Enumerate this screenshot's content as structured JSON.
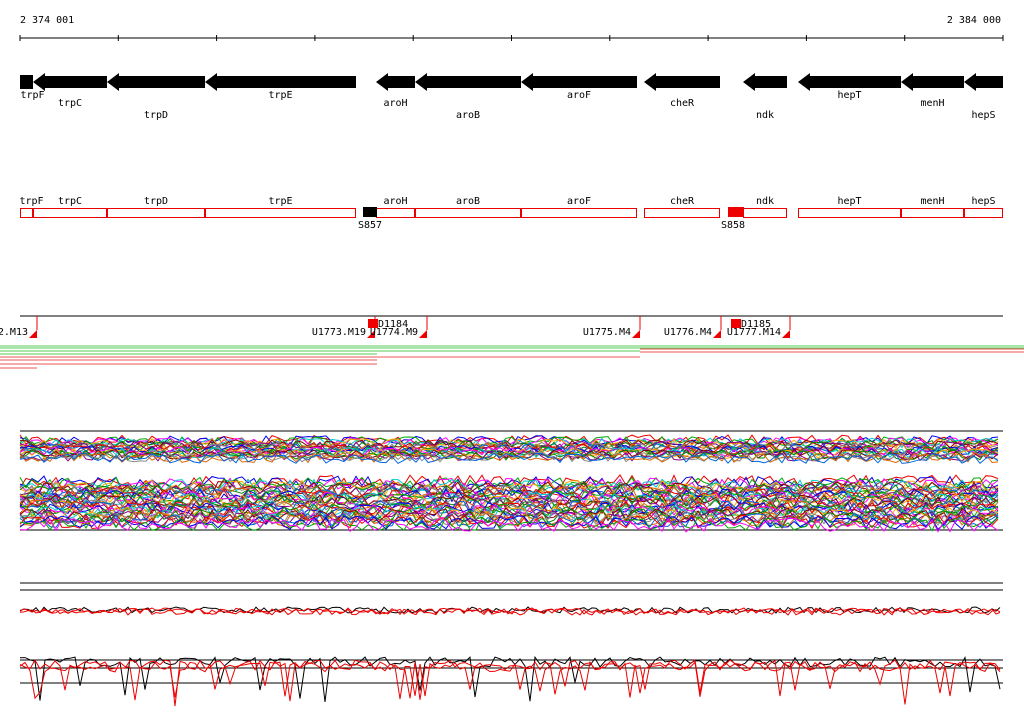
{
  "axis": {
    "start": "2 374 001",
    "end": "2 384 000"
  },
  "genes": [
    "trpF",
    "trpC",
    "trpD",
    "trpE",
    "aroH",
    "aroB",
    "aroF",
    "cheR",
    "ndk",
    "hepT",
    "menH",
    "hepS"
  ],
  "operons": [
    "trpF",
    "trpC",
    "trpD",
    "trpE",
    "aroH",
    "aroB",
    "aroF",
    "cheR",
    "ndk",
    "hepT",
    "menH",
    "hepS"
  ],
  "sites": [
    "S857",
    "S858"
  ],
  "units": [
    "2.M13",
    "U1773.M19",
    "U1774.M9",
    "U1775.M4",
    "U1776.M4",
    "U1777.M14"
  ],
  "promoters": [
    "D1184",
    "D1185"
  ]
}
